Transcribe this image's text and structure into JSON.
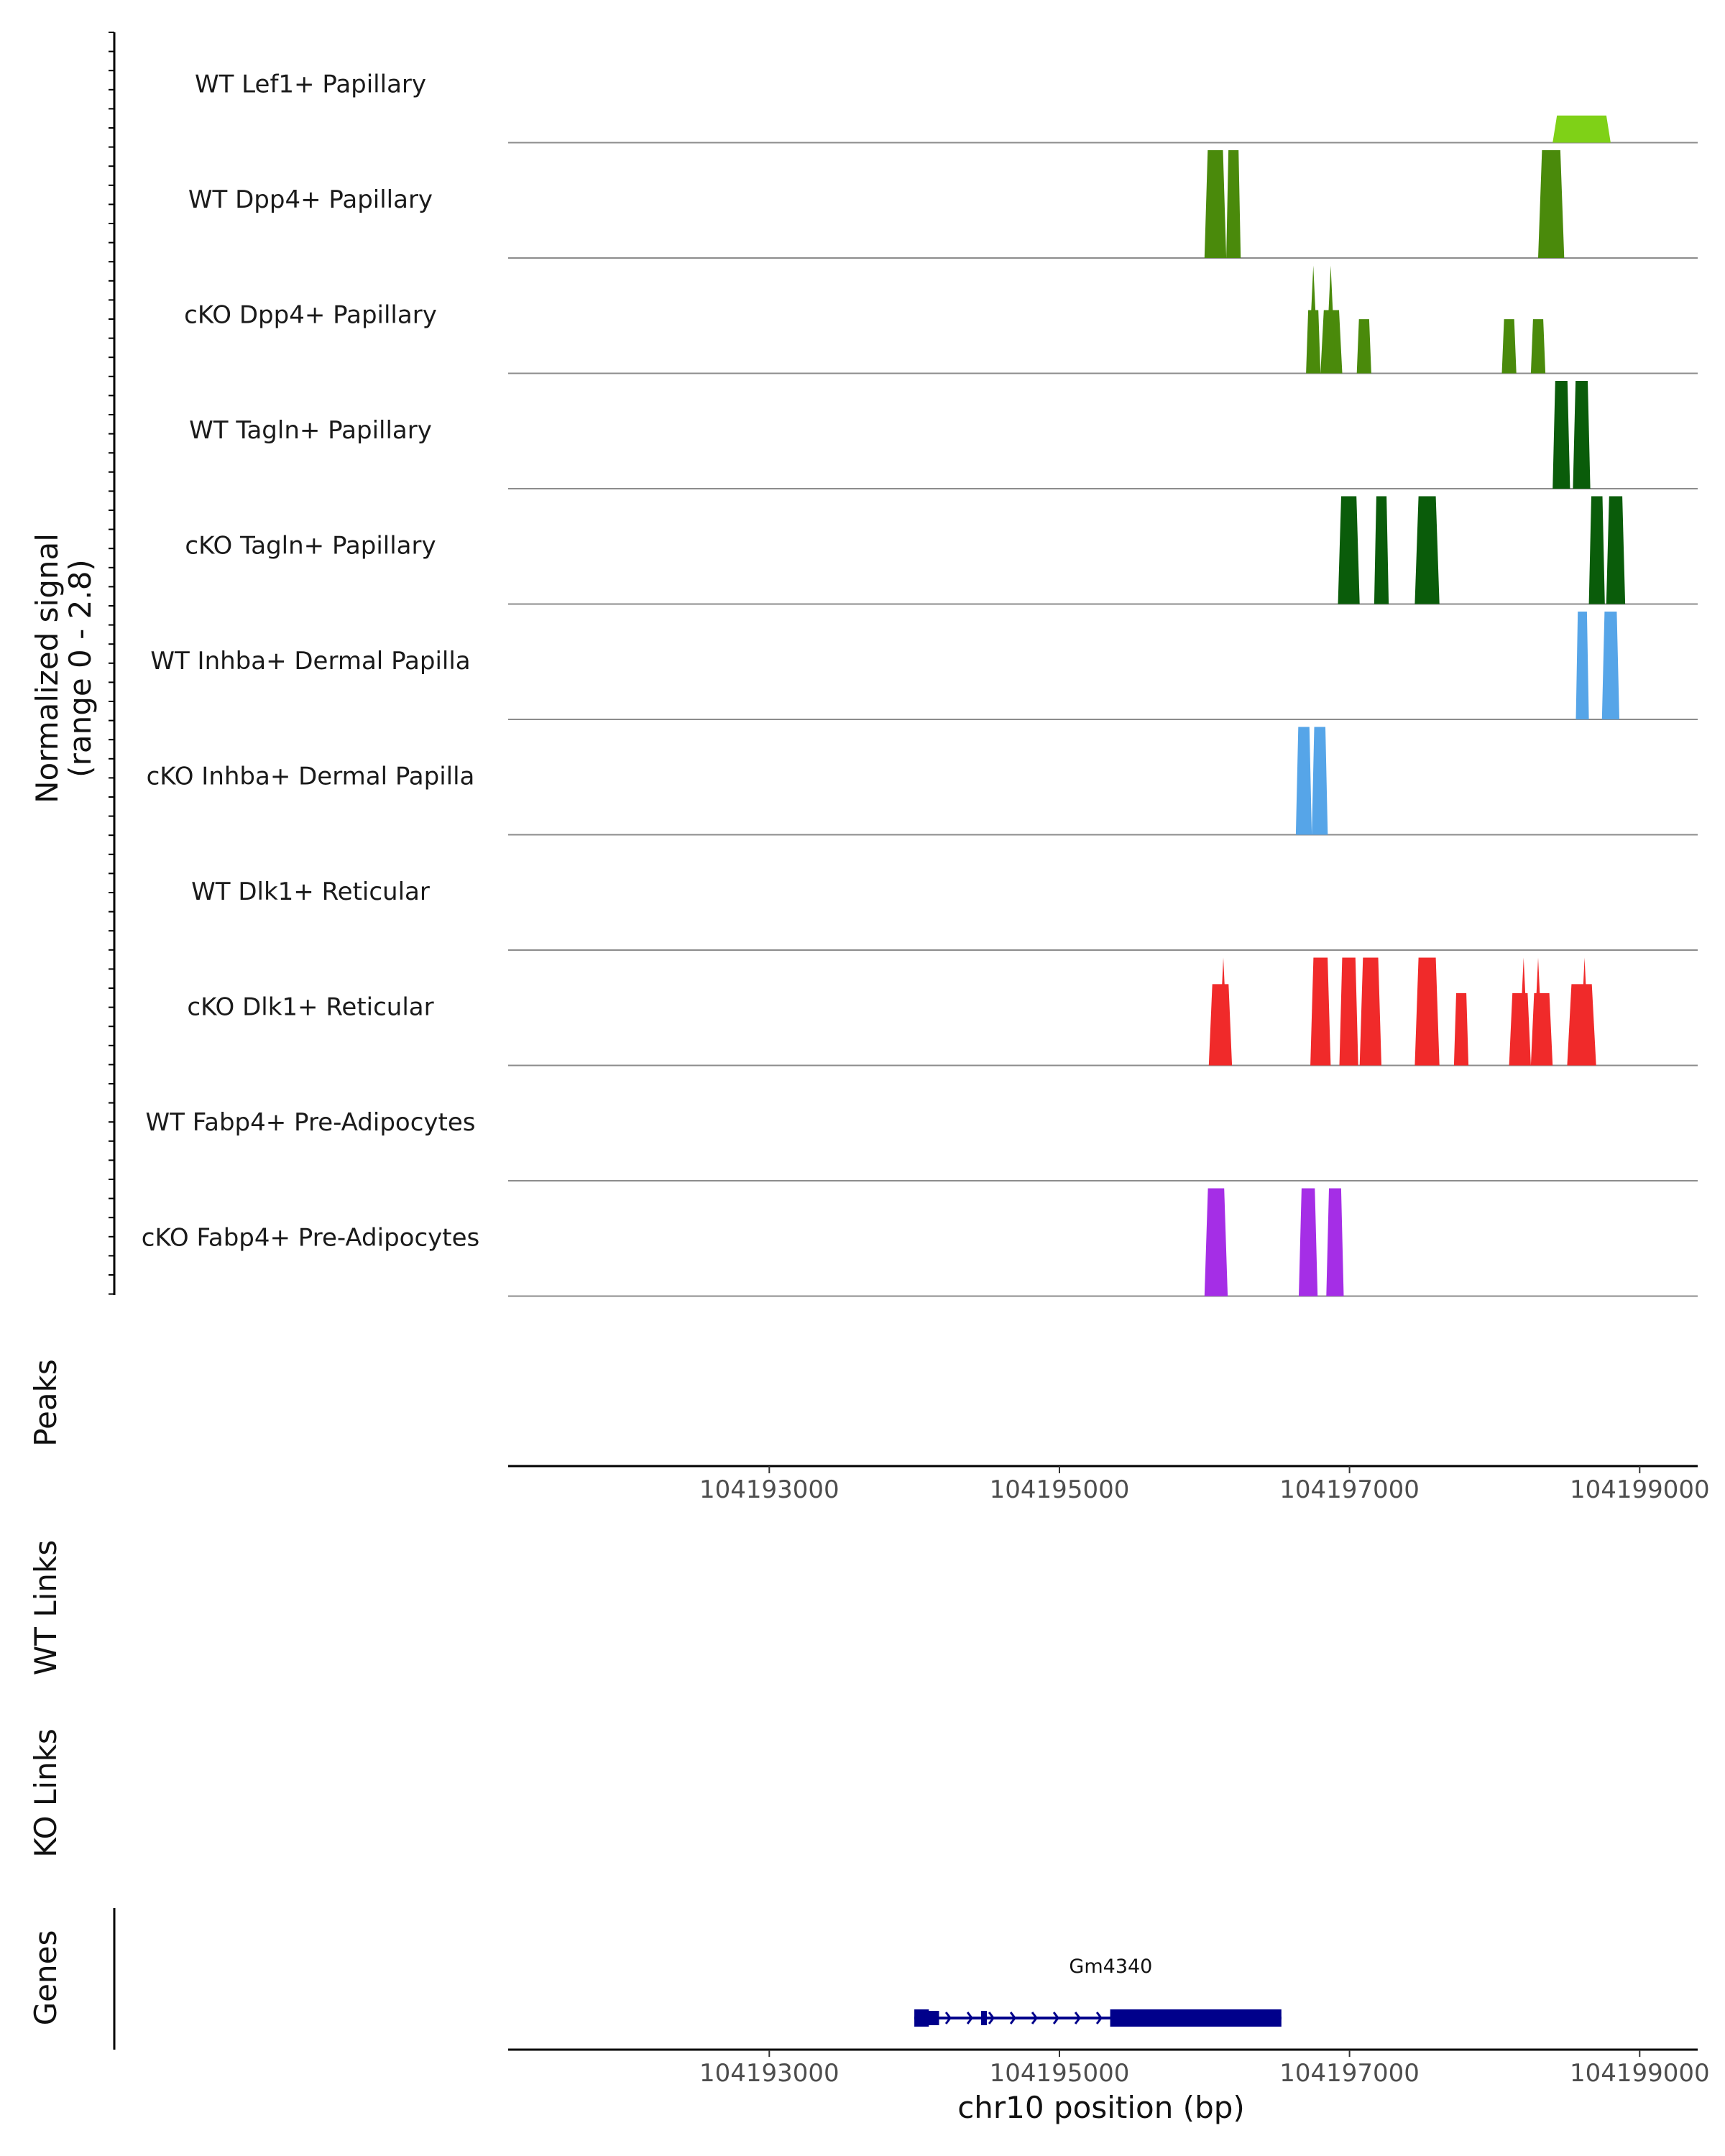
{
  "chart_data": {
    "type": "area",
    "region": "chr10",
    "xlim": [
      104191200,
      104199400
    ],
    "y_axis_label": [
      "Normalized signal",
      "(range 0 - 2.8)"
    ],
    "ylim": [
      0,
      2.8
    ],
    "x_axis_title": "chr10 position (bp)",
    "x_ticks": [
      104193000,
      104195000,
      104197000,
      104199000
    ],
    "x_tick_labels": [
      "104193000",
      "104195000",
      "104197000",
      "104199000"
    ],
    "tracks": [
      {
        "name": "WT Lef1+ Papillary",
        "color": "#7fd117",
        "segments": [
          [
            104198400,
            104198800,
            0.3
          ]
        ],
        "spikes": []
      },
      {
        "name": "WT Dpp4+ Papillary",
        "color": "#4a8a0b",
        "segments": [
          [
            104196000,
            104196150,
            1.3
          ],
          [
            104196150,
            104196250,
            1.3
          ],
          [
            104198300,
            104198480,
            1.3
          ]
        ],
        "spikes": []
      },
      {
        "name": "cKO Dpp4+ Papillary",
        "color": "#4a8a0b",
        "segments": [
          [
            104196700,
            104196800,
            0.7
          ],
          [
            104196800,
            104196950,
            0.7
          ],
          [
            104197050,
            104197150,
            0.6
          ],
          [
            104198050,
            104198150,
            0.6
          ],
          [
            104198250,
            104198350,
            0.6
          ]
        ],
        "spikes": [
          [
            104196750,
            1.5
          ],
          [
            104196870,
            1.5
          ]
        ]
      },
      {
        "name": "WT Tagln+ Papillary",
        "color": "#0a5c0a",
        "segments": [
          [
            104198400,
            104198520,
            2.8
          ],
          [
            104198540,
            104198660,
            2.8
          ]
        ],
        "spikes": []
      },
      {
        "name": "cKO Tagln+ Papillary",
        "color": "#0a5c0a",
        "segments": [
          [
            104196920,
            104197070,
            1.7
          ],
          [
            104197170,
            104197270,
            1.7
          ],
          [
            104197450,
            104197620,
            1.7
          ],
          [
            104198650,
            104198760,
            1.7
          ],
          [
            104198770,
            104198900,
            1.7
          ]
        ],
        "spikes": [
          [
            104197540,
            3.5
          ]
        ]
      },
      {
        "name": "WT Inhba+ Dermal Papilla",
        "color": "#56a5e8",
        "segments": [
          [
            104198560,
            104198650,
            1.3
          ],
          [
            104198740,
            104198860,
            1.3
          ]
        ],
        "spikes": []
      },
      {
        "name": "cKO Inhba+ Dermal Papilla",
        "color": "#56a5e8",
        "segments": [
          [
            104196630,
            104196740,
            4.7
          ],
          [
            104196740,
            104196850,
            4.7
          ]
        ],
        "spikes": []
      },
      {
        "name": "WT Dlk1+ Reticular",
        "color": "#808080",
        "segments": [],
        "spikes": []
      },
      {
        "name": "cKO Dlk1+ Reticular",
        "color": "#f02a2a",
        "segments": [
          [
            104196030,
            104196190,
            0.9
          ],
          [
            104196730,
            104196870,
            1.5
          ],
          [
            104196930,
            104197060,
            1.7
          ],
          [
            104197070,
            104197220,
            1.7
          ],
          [
            104197450,
            104197620,
            1.5
          ],
          [
            104197720,
            104197820,
            0.8
          ],
          [
            104198100,
            104198250,
            0.8
          ],
          [
            104198250,
            104198400,
            0.8
          ],
          [
            104198500,
            104198700,
            0.9
          ]
        ],
        "spikes": [
          [
            104196130,
            1.6
          ],
          [
            104198200,
            1.6
          ],
          [
            104198300,
            1.2
          ],
          [
            104198620,
            1.3
          ]
        ]
      },
      {
        "name": "WT Fabp4+ Pre-Adipocytes",
        "color": "#808080",
        "segments": [],
        "spikes": []
      },
      {
        "name": "cKO Fabp4+ Pre-Adipocytes",
        "color": "#a52ee6",
        "segments": [
          [
            104196000,
            104196160,
            4.5
          ],
          [
            104196650,
            104196780,
            4.5
          ],
          [
            104196840,
            104196960,
            4.5
          ]
        ],
        "spikes": [
          [
            104196090,
            9.0
          ]
        ]
      }
    ],
    "panels": [
      "Peaks",
      "WT Links",
      "KO Links",
      "Genes"
    ],
    "genes": [
      {
        "name": "Gm4340",
        "start": 104194000,
        "end": 104196530,
        "strand": "+",
        "exons": [
          [
            104194000,
            104194100
          ],
          [
            104194070,
            104194170
          ],
          [
            104194460,
            104194500
          ],
          [
            104195350,
            104196530
          ]
        ]
      }
    ]
  }
}
